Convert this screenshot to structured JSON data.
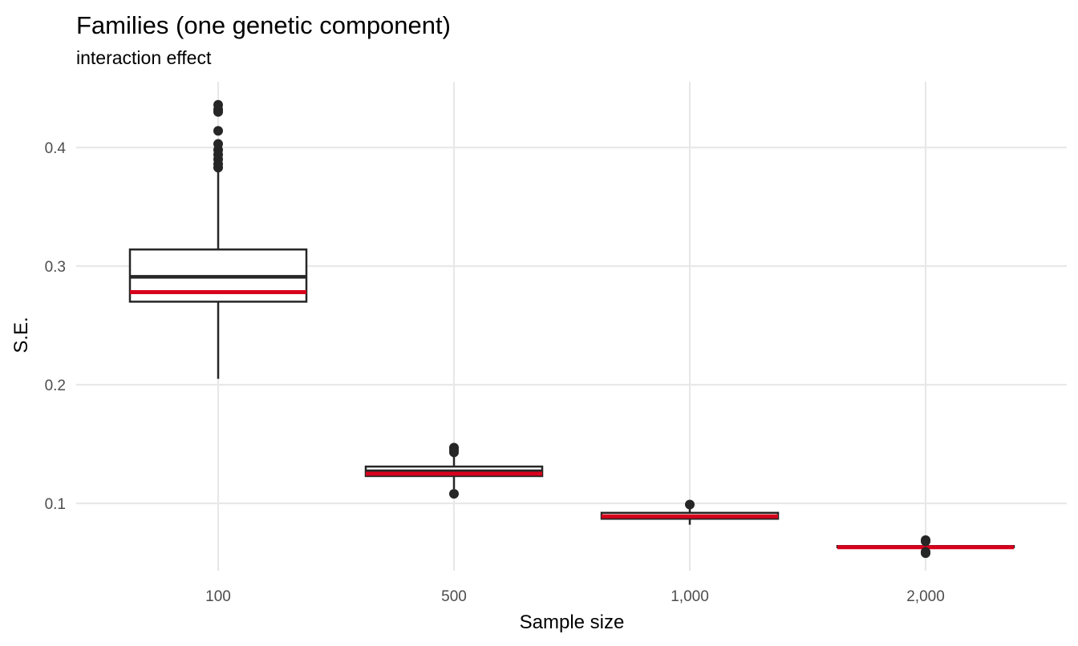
{
  "chart_data": {
    "type": "box",
    "title": "Families (one genetic component)",
    "subtitle": "interaction effect",
    "xlabel": "Sample size",
    "ylabel": "S.E.",
    "categories": [
      "100",
      "500",
      "1,000",
      "2,000"
    ],
    "yticks": [
      0.1,
      0.2,
      0.3,
      0.4
    ],
    "ytick_labels": [
      "0.1",
      "0.2",
      "0.3",
      "0.4"
    ],
    "ylim": [
      0.046,
      0.455
    ],
    "grid": true,
    "legend": "none",
    "colors": {
      "box": "#262626",
      "reference": "#d7001c",
      "grid": "#e8e8e8"
    },
    "boxes": [
      {
        "category": "100",
        "whisker_low": 0.205,
        "q1": 0.27,
        "median": 0.291,
        "q3": 0.314,
        "whisker_high": 0.382,
        "reference": 0.278,
        "outliers": [
          0.383,
          0.386,
          0.39,
          0.394,
          0.398,
          0.403,
          0.414,
          0.43,
          0.432,
          0.436
        ]
      },
      {
        "category": "500",
        "whisker_low": 0.112,
        "q1": 0.123,
        "median": 0.127,
        "q3": 0.131,
        "whisker_high": 0.14,
        "reference": 0.125,
        "outliers": [
          0.108,
          0.143,
          0.145,
          0.147
        ]
      },
      {
        "category": "1,000",
        "whisker_low": 0.082,
        "q1": 0.087,
        "median": 0.089,
        "q3": 0.092,
        "whisker_high": 0.096,
        "reference": 0.089,
        "outliers": [
          0.099
        ]
      },
      {
        "category": "2,000",
        "whisker_low": 0.061,
        "q1": 0.063,
        "median": 0.063,
        "q3": 0.064,
        "whisker_high": 0.067,
        "reference": 0.063,
        "outliers": [
          0.058,
          0.059,
          0.068,
          0.069
        ]
      }
    ]
  }
}
